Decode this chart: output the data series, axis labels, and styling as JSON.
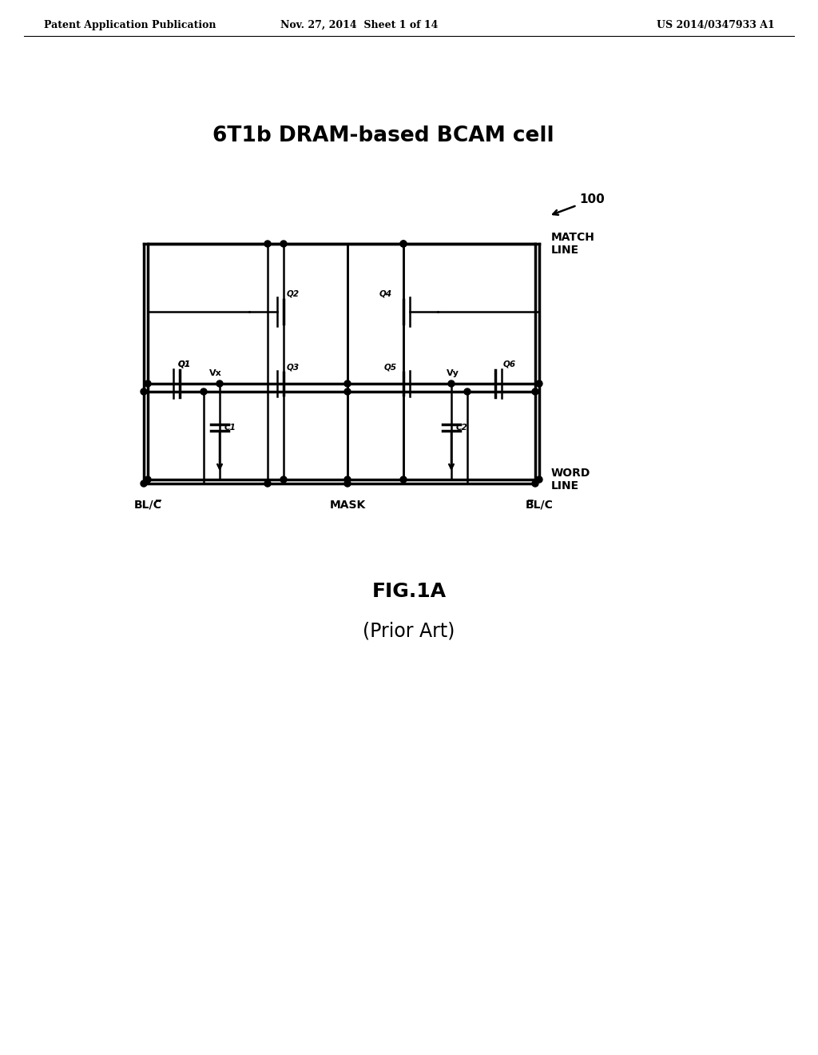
{
  "title": "6T1b DRAM-based BCAM cell",
  "header_left": "Patent Application Publication",
  "header_center": "Nov. 27, 2014  Sheet 1 of 14",
  "header_right": "US 2014/0347933 A1",
  "fig_label": "FIG.1A",
  "fig_sublabel": "(Prior Art)",
  "ref_number": "100",
  "match_line_label": "MATCH\nLINE",
  "word_line_label": "WORD\nLINE",
  "bl_left_label": "BL/C̅",
  "mask_label": "MASK",
  "bl_right_label": "B̅L/C",
  "bg_color": "#ffffff",
  "line_color": "#000000",
  "lw": 1.8,
  "lw_thick": 2.5
}
